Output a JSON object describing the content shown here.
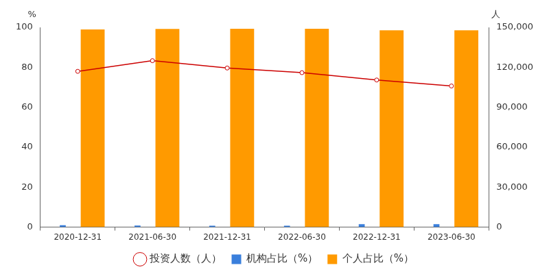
{
  "chart_data": {
    "type": "bar",
    "categories": [
      "2020-12-31",
      "2021-06-30",
      "2021-12-31",
      "2022-06-30",
      "2022-12-31",
      "2023-06-30"
    ],
    "series": [
      {
        "name": "投资人数（人）",
        "type": "line",
        "axis": "y2",
        "color": "#cc0000",
        "marker": "circle",
        "values": [
          117000,
          125000,
          119500,
          116000,
          110500,
          106000
        ]
      },
      {
        "name": "机构占比（%）",
        "type": "bar",
        "color": "#3a7fdc",
        "values": [
          1.0,
          0.8,
          0.7,
          0.7,
          1.5,
          1.5
        ]
      },
      {
        "name": "个人占比（%）",
        "type": "bar",
        "color": "#ff9a00",
        "values": [
          99.0,
          99.2,
          99.3,
          99.3,
          98.5,
          98.5
        ]
      }
    ],
    "ylabel": "%",
    "y2label": "人",
    "ylim": [
      0,
      100
    ],
    "yticks": [
      0,
      20,
      40,
      60,
      80,
      100
    ],
    "y2lim": [
      0,
      150000
    ],
    "y2ticks": [
      {
        "value": 0,
        "label": "0"
      },
      {
        "value": 30000,
        "label": "30,000"
      },
      {
        "value": 60000,
        "label": "60,000"
      },
      {
        "value": 90000,
        "label": "90,000"
      },
      {
        "value": 120000,
        "label": "120,000"
      },
      {
        "value": 150000,
        "label": "150,000"
      }
    ],
    "grid": false,
    "legend": "bottom"
  }
}
